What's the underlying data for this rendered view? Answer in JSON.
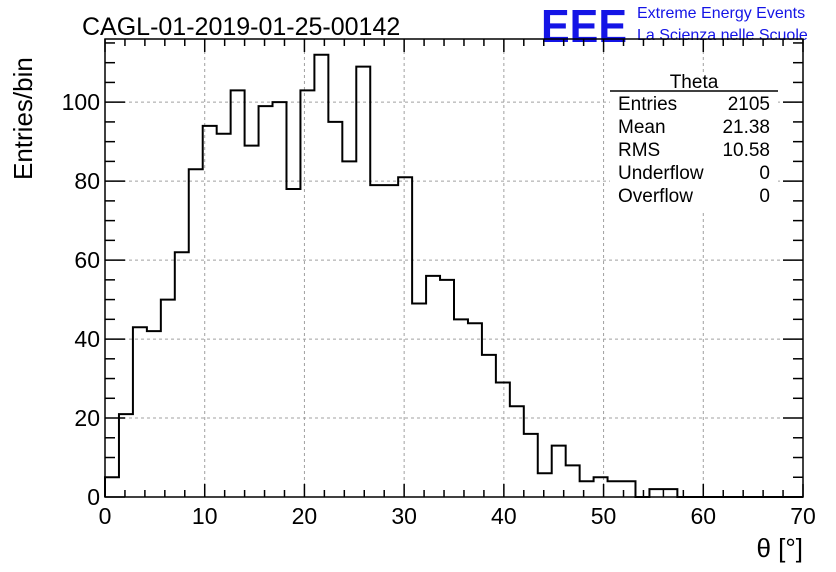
{
  "header": {
    "title": "CAGL-01-2019-01-25-00142",
    "logo_text": "EEE",
    "logo_line1": "Extreme Energy Events",
    "logo_line2": "La Scienza nelle Scuole",
    "logo_color": "#1414e6"
  },
  "stats_box": {
    "name": "Theta",
    "rows": [
      {
        "label": "Entries",
        "value": "2105"
      },
      {
        "label": "Mean",
        "value": "21.38"
      },
      {
        "label": "RMS",
        "value": "10.58"
      },
      {
        "label": "Underflow",
        "value": "0"
      },
      {
        "label": "Overflow",
        "value": "0"
      }
    ]
  },
  "chart_data": {
    "type": "bar",
    "histogram": true,
    "title": "CAGL-01-2019-01-25-00142",
    "xlabel": "θ [°]",
    "ylabel": "Entries/bin",
    "xlim": [
      0,
      70
    ],
    "ylim": [
      0,
      116
    ],
    "grid": true,
    "bin_edges_start": 0,
    "bin_width": 1.4,
    "x_ticks": [
      "0",
      "10",
      "20",
      "30",
      "40",
      "50",
      "60",
      "70"
    ],
    "x_tick_values": [
      0,
      10,
      20,
      30,
      40,
      50,
      60,
      70
    ],
    "y_ticks": [
      "0",
      "20",
      "40",
      "60",
      "80",
      "100"
    ],
    "y_tick_values": [
      0,
      20,
      40,
      60,
      80,
      100
    ],
    "values": [
      5,
      21,
      43,
      42,
      50,
      62,
      83,
      94,
      92,
      103,
      89,
      99,
      100,
      78,
      103,
      112,
      95,
      85,
      109,
      79,
      79,
      81,
      49,
      56,
      55,
      45,
      44,
      36,
      29,
      23,
      16,
      6,
      13,
      8,
      4,
      5,
      4,
      4,
      0,
      2,
      2,
      0,
      0,
      0,
      0,
      0,
      0,
      0,
      0,
      0
    ],
    "line_color": "#000000"
  }
}
